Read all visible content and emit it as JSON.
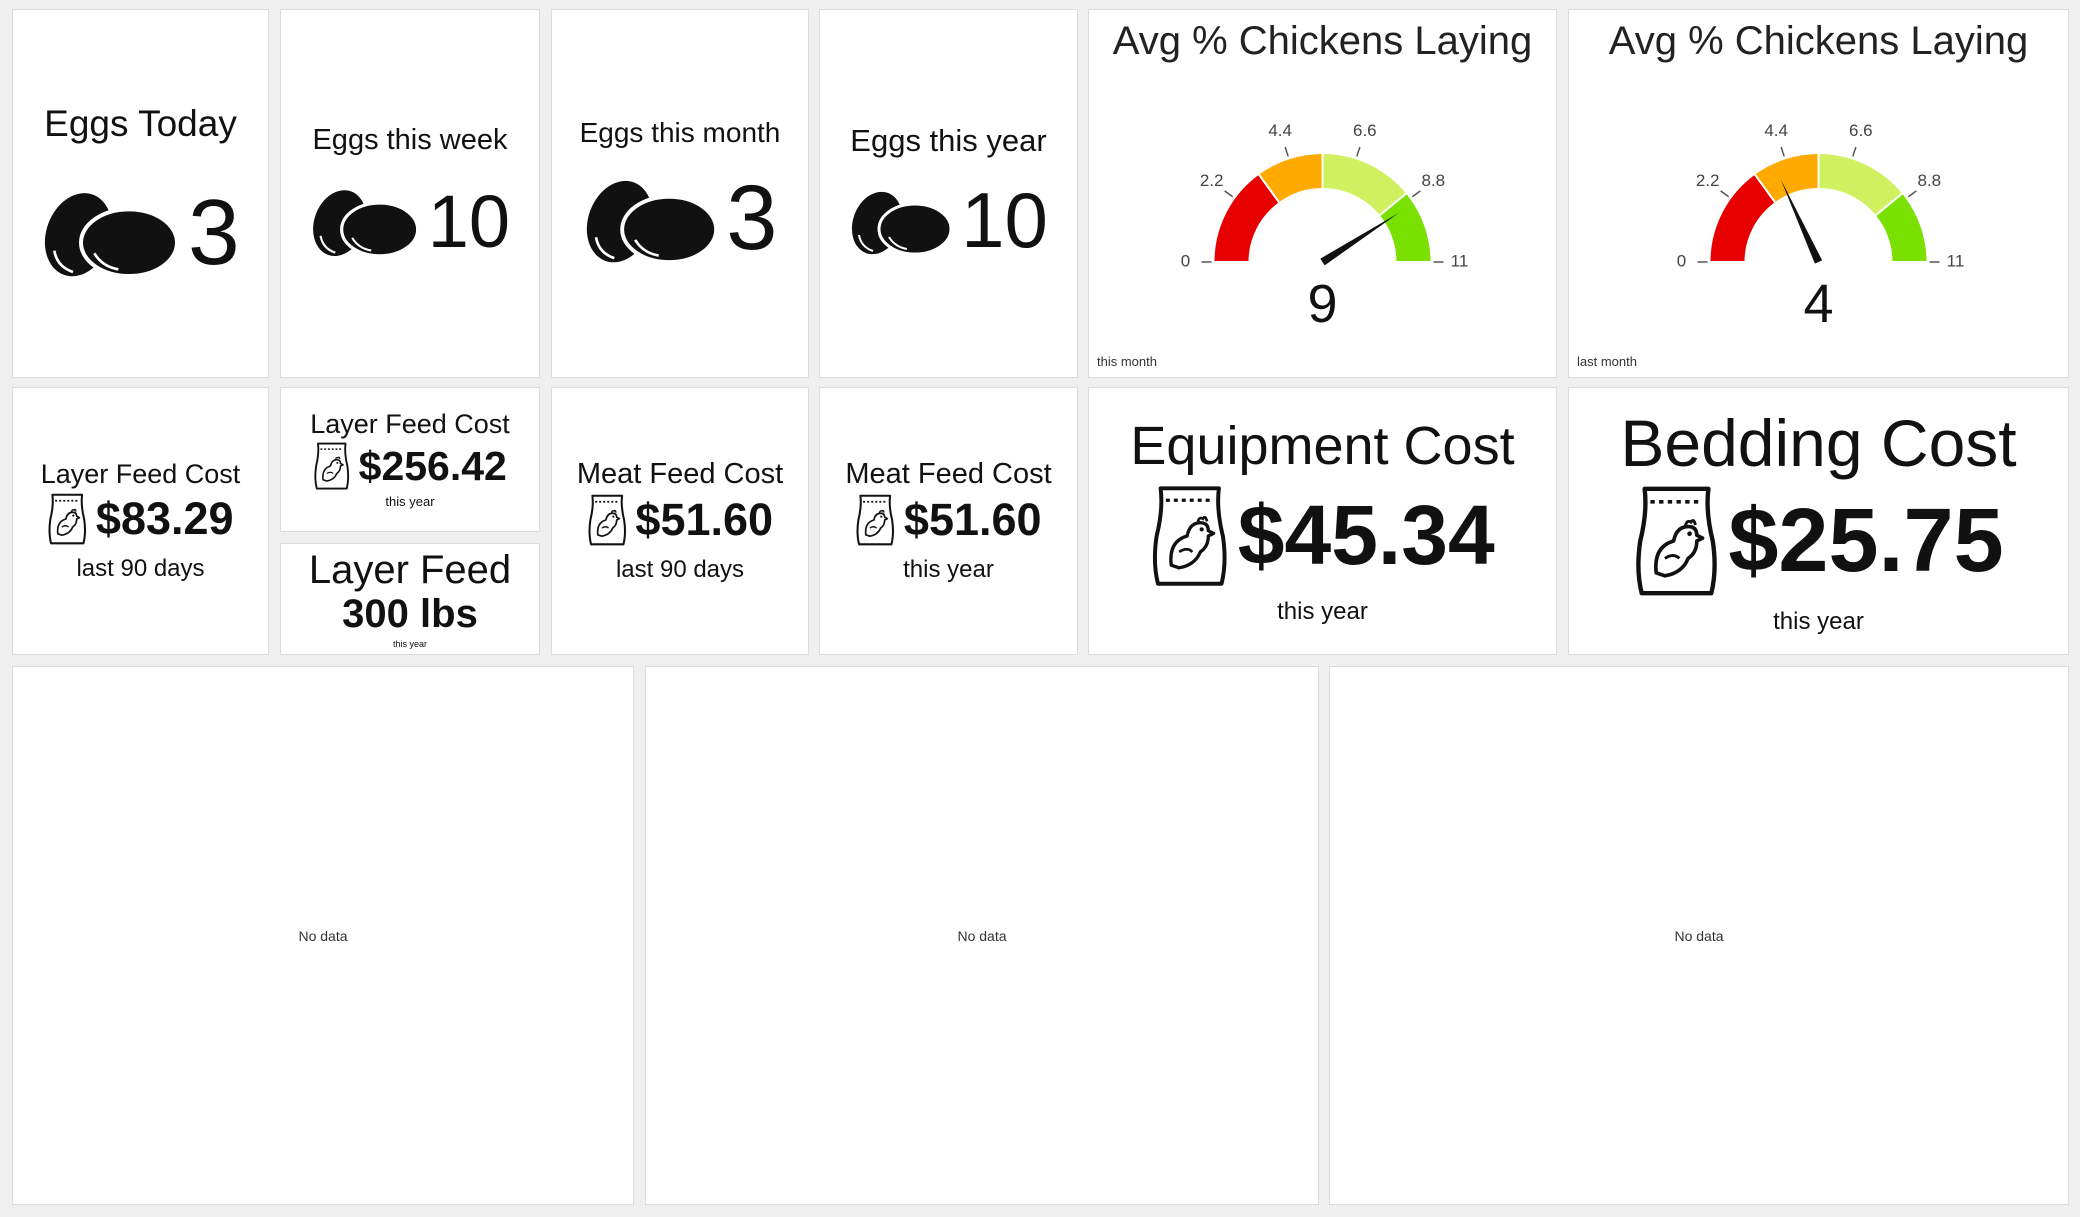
{
  "tiles": [
    {
      "title": "Eggs Today",
      "value": "3"
    },
    {
      "title": "Eggs this week",
      "value": "10"
    },
    {
      "title": "Eggs this month",
      "value": "3"
    },
    {
      "title": "Eggs this year",
      "value": "10"
    },
    {
      "title": "Layer Feed Cost",
      "value": "$83.29",
      "subtitle": "last 90 days"
    },
    {
      "title": "Layer Feed Cost",
      "value": "$256.42",
      "subtitle": "this year"
    },
    {
      "title": "Layer Feed",
      "value": "300 lbs",
      "subtitle": "this year"
    },
    {
      "title": "Meat Feed Cost",
      "value": "$51.60",
      "subtitle": "last 90 days"
    },
    {
      "title": "Meat Feed Cost",
      "value": "$51.60",
      "subtitle": "this year"
    },
    {
      "title": "Equipment Cost",
      "value": "$45.34",
      "subtitle": "this year"
    },
    {
      "title": "Bedding Cost",
      "value": "$25.75",
      "subtitle": "this year"
    }
  ],
  "gauges": [
    {
      "title": "Avg % Chickens Laying",
      "value": 9,
      "caption": "this month",
      "ticks": [
        0,
        2.2,
        4.4,
        6.6,
        8.8,
        11
      ],
      "bands": [
        {
          "from": 0,
          "to": 3.3,
          "color": "#e60000"
        },
        {
          "from": 3.3,
          "to": 5.5,
          "color": "#ffaa00"
        },
        {
          "from": 5.5,
          "to": 8.6,
          "color": "#d1f060"
        },
        {
          "from": 8.6,
          "to": 11,
          "color": "#7ae000"
        }
      ]
    },
    {
      "title": "Avg % Chickens Laying",
      "value": 4,
      "caption": "last month",
      "ticks": [
        0,
        2.2,
        4.4,
        6.6,
        8.8,
        11
      ],
      "bands": [
        {
          "from": 0,
          "to": 3.3,
          "color": "#e60000"
        },
        {
          "from": 3.3,
          "to": 5.5,
          "color": "#ffaa00"
        },
        {
          "from": 5.5,
          "to": 8.6,
          "color": "#d1f060"
        },
        {
          "from": 8.6,
          "to": 11,
          "color": "#7ae000"
        }
      ]
    }
  ],
  "panels": [
    {
      "message": "No data"
    },
    {
      "message": "No data"
    },
    {
      "message": "No data"
    }
  ]
}
